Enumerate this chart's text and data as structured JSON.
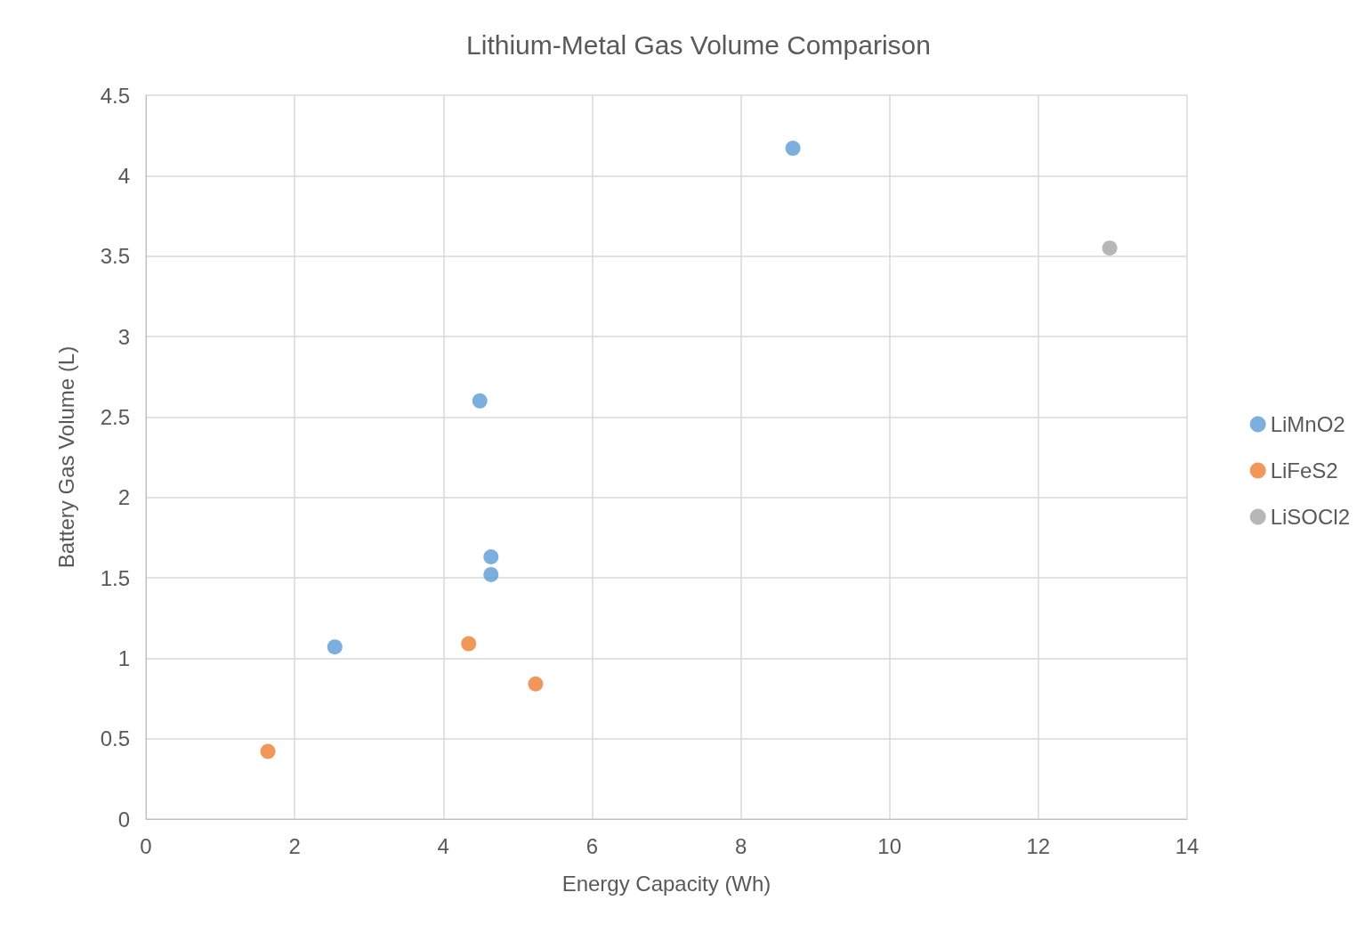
{
  "chart_data": {
    "type": "scatter",
    "title": "Lithium-Metal Gas Volume Comparison",
    "xlabel": "Energy Capacity (Wh)",
    "ylabel": "Battery Gas Volume (L)",
    "series": [
      {
        "name": "LiMnO2",
        "color": "#5b9bd5",
        "x": [
          2.54,
          4.49,
          4.64,
          4.64,
          8.7
        ],
        "values": [
          1.07,
          2.6,
          1.63,
          1.52,
          4.17
        ]
      },
      {
        "name": "LiFeS2",
        "color": "#ed7d31",
        "x": [
          1.64,
          4.34,
          5.24
        ],
        "values": [
          0.42,
          1.09,
          0.84
        ]
      },
      {
        "name": "LiSOCl2",
        "color": "#a5a5a5",
        "x": [
          12.96
        ],
        "values": [
          3.55
        ]
      }
    ],
    "xlim": [
      0,
      14
    ],
    "xticks": [
      0,
      2,
      4,
      6,
      8,
      10,
      12,
      14
    ],
    "ylim": [
      0,
      4.5
    ],
    "yticks": [
      0,
      0.5,
      1,
      1.5,
      2,
      2.5,
      3,
      3.5,
      4,
      4.5
    ],
    "grid": true,
    "legend": "right",
    "marker": "circle"
  }
}
